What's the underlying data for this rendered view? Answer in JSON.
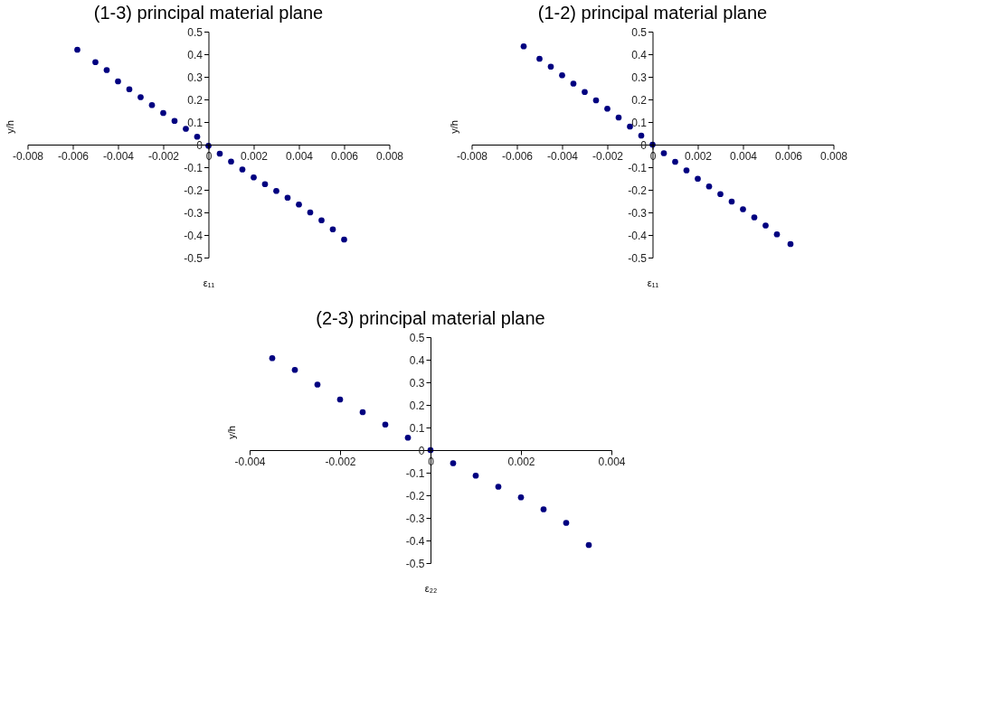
{
  "chart_data": [
    {
      "type": "scatter",
      "title": "(1-3) principal material plane",
      "xlabel": "ε₁₁",
      "ylabel": "y/h",
      "marker": "circle",
      "grid": false,
      "x": [
        -0.0058,
        -0.005,
        -0.0045,
        -0.004,
        -0.0035,
        -0.003,
        -0.0025,
        -0.002,
        -0.0015,
        -0.001,
        -0.0005,
        0,
        0.0005,
        0.001,
        0.0015,
        0.002,
        0.0025,
        0.003,
        0.0035,
        0.004,
        0.0045,
        0.005,
        0.0055,
        0.006
      ],
      "series": [
        {
          "color": "#000080",
          "values": [
            0.42,
            0.365,
            0.33,
            0.28,
            0.245,
            0.21,
            0.175,
            0.14,
            0.105,
            0.07,
            0.035,
            -0.005,
            -0.04,
            -0.075,
            -0.11,
            -0.145,
            -0.175,
            -0.205,
            -0.235,
            -0.265,
            -0.3,
            -0.335,
            -0.375,
            -0.42
          ]
        }
      ],
      "xlim": [
        -0.008,
        0.008
      ],
      "xticks": [
        -0.008,
        -0.006,
        -0.004,
        -0.002,
        0,
        0.002,
        0.004,
        0.006,
        0.008
      ],
      "ylim": [
        -0.5,
        0.5
      ],
      "yticks": [
        -0.5,
        -0.4,
        -0.3,
        -0.2,
        -0.1,
        0,
        0.1,
        0.2,
        0.3,
        0.4,
        0.5
      ]
    },
    {
      "type": "scatter",
      "title": "(1-2) principal material plane",
      "xlabel": "ε₁₁",
      "ylabel": "y/h",
      "marker": "circle",
      "grid": false,
      "x": [
        -0.0057,
        -0.005,
        -0.0045,
        -0.004,
        -0.0035,
        -0.003,
        -0.0025,
        -0.002,
        -0.0015,
        -0.001,
        -0.0005,
        0,
        0.0005,
        0.001,
        0.0015,
        0.002,
        0.0025,
        0.003,
        0.0035,
        0.004,
        0.0045,
        0.005,
        0.0055,
        0.0061
      ],
      "series": [
        {
          "color": "#000080",
          "values": [
            0.435,
            0.38,
            0.345,
            0.307,
            0.27,
            0.233,
            0.196,
            0.159,
            0.12,
            0.08,
            0.04,
            0,
            -0.038,
            -0.076,
            -0.114,
            -0.151,
            -0.185,
            -0.219,
            -0.252,
            -0.286,
            -0.322,
            -0.358,
            -0.397,
            -0.44
          ]
        }
      ],
      "xlim": [
        -0.008,
        0.008
      ],
      "xticks": [
        -0.008,
        -0.006,
        -0.004,
        -0.002,
        0,
        0.002,
        0.004,
        0.006,
        0.008
      ],
      "ylim": [
        -0.5,
        0.5
      ],
      "yticks": [
        -0.5,
        -0.4,
        -0.3,
        -0.2,
        -0.1,
        0,
        0.1,
        0.2,
        0.3,
        0.4,
        0.5
      ]
    },
    {
      "type": "scatter",
      "title": "(2-3) principal material plane",
      "xlabel": "ε₂₂",
      "ylabel": "y/h",
      "marker": "circle",
      "grid": false,
      "x": [
        -0.0035,
        -0.003,
        -0.0025,
        -0.002,
        -0.0015,
        -0.001,
        -0.0005,
        0,
        0.0005,
        0.001,
        0.0015,
        0.002,
        0.0025,
        0.003,
        0.0035
      ],
      "series": [
        {
          "color": "#000080",
          "values": [
            0.407,
            0.355,
            0.29,
            0.224,
            0.168,
            0.113,
            0.055,
            0,
            -0.058,
            -0.113,
            -0.162,
            -0.209,
            -0.262,
            -0.322,
            -0.42
          ]
        }
      ],
      "xlim": [
        -0.004,
        0.004
      ],
      "xticks": [
        -0.004,
        -0.002,
        0,
        0.002,
        0.004
      ],
      "ylim": [
        -0.5,
        0.5
      ],
      "yticks": [
        -0.5,
        -0.4,
        -0.3,
        -0.2,
        -0.1,
        0,
        0.1,
        0.2,
        0.3,
        0.4,
        0.5
      ]
    }
  ]
}
